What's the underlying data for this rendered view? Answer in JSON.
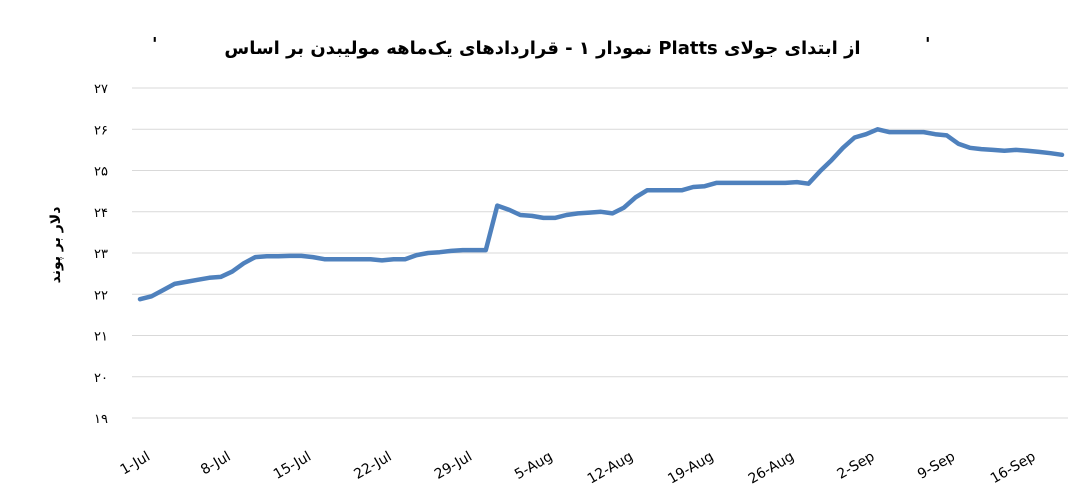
{
  "chart_data": {
    "type": "line",
    "title": "نمودار ۱ - قراردادهای یک‌ماهه مولیبدن بر اساس Platts از ابتدای جولای",
    "title_marks": [
      "'",
      "'"
    ],
    "ylabel": "دلار بر پوند",
    "xlabel": "",
    "ylim": [
      19,
      27
    ],
    "y_ticks": [
      19,
      20,
      21,
      22,
      23,
      24,
      25,
      26,
      27
    ],
    "y_tick_labels": [
      "۱۹",
      "۲۰",
      "۲۱",
      "۲۲",
      "۲۳",
      "۲۴",
      "۲۵",
      "۲۶",
      "۲۷"
    ],
    "x_tick_labels": [
      "1-Jul",
      "8-Jul",
      "15-Jul",
      "22-Jul",
      "29-Jul",
      "5-Aug",
      "12-Aug",
      "19-Aug",
      "26-Aug",
      "2-Sep",
      "9-Sep",
      "16-Sep"
    ],
    "grid": true,
    "color": "#4f81bd",
    "series": [
      {
        "values": [
          21.88,
          21.95,
          22.1,
          22.25,
          22.3,
          22.35,
          22.4,
          22.42,
          22.55,
          22.75,
          22.9,
          22.92,
          22.92,
          22.93,
          22.93,
          22.9,
          22.85,
          22.85,
          22.85,
          22.85,
          22.85,
          22.82,
          22.85,
          22.85,
          22.95,
          23.0,
          23.02,
          23.05,
          23.07,
          23.07,
          23.07,
          24.15,
          24.05,
          23.92,
          23.9,
          23.85,
          23.85,
          23.92,
          23.96,
          23.98,
          24.0,
          23.96,
          24.1,
          24.35,
          24.52,
          24.52,
          24.52,
          24.52,
          24.6,
          24.62,
          24.7,
          24.7,
          24.7,
          24.7,
          24.7,
          24.7,
          24.7,
          24.72,
          24.68,
          24.98,
          25.25,
          25.55,
          25.8,
          25.88,
          26.0,
          25.93,
          25.93,
          25.93,
          25.93,
          25.88,
          25.85,
          25.65,
          25.55,
          25.52,
          25.5,
          25.48,
          25.5,
          25.48,
          25.45,
          25.42,
          25.38
        ]
      }
    ]
  }
}
